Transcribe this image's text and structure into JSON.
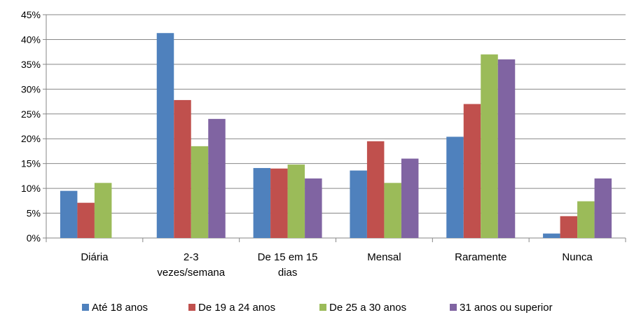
{
  "chart_data": {
    "type": "bar",
    "categories": [
      [
        "Diária"
      ],
      [
        "2-3",
        "vezes/semana"
      ],
      [
        "De 15 em 15",
        "dias"
      ],
      [
        "Mensal"
      ],
      [
        "Raramente"
      ],
      [
        "Nunca"
      ]
    ],
    "series": [
      {
        "name": "Até 18 anos",
        "color": "#4F81BD",
        "values": [
          9.5,
          41.3,
          14.1,
          13.6,
          20.4,
          0.9
        ]
      },
      {
        "name": "De 19 a 24 anos",
        "color": "#C0504D",
        "values": [
          7.1,
          27.8,
          14.0,
          19.5,
          27.0,
          4.4
        ]
      },
      {
        "name": "De 25 a 30 anos",
        "color": "#9BBB59",
        "values": [
          11.1,
          18.5,
          14.8,
          11.1,
          37.0,
          7.4
        ]
      },
      {
        "name": "31 anos ou superior",
        "color": "#8064A2",
        "values": [
          0,
          24.0,
          12.0,
          16.0,
          36.0,
          12.0
        ]
      }
    ],
    "ylim": [
      0,
      45
    ],
    "yticks": [
      "0%",
      "5%",
      "10%",
      "15%",
      "20%",
      "25%",
      "30%",
      "35%",
      "40%",
      "45%"
    ],
    "grid": true,
    "legend_position": "bottom",
    "title": "",
    "xlabel": "",
    "ylabel": ""
  }
}
